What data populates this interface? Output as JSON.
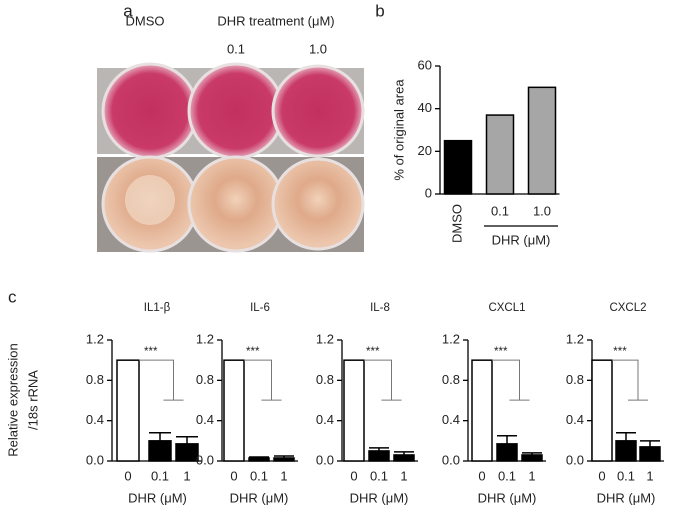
{
  "panel_labels": [
    "a",
    "b",
    "c"
  ],
  "photo": {
    "control_label": "DMSO",
    "treatment_label": "DHR treatment (μM)",
    "doses": [
      "0.1",
      "1.0"
    ]
  },
  "shared_ylabel": [
    "Relative expression",
    "/18s rRNA"
  ],
  "chart_data": [
    {
      "type": "bar",
      "ylabel": "% of original area",
      "categories": [
        "DMSO",
        "0.1",
        "1.0"
      ],
      "values": [
        25,
        37,
        50
      ],
      "colors": [
        "#000000",
        "#a6a6a6",
        "#a6a6a6"
      ],
      "ylim": [
        0,
        60
      ],
      "yticks": [
        0,
        20,
        40,
        60
      ],
      "group_label": "DHR (μM)"
    },
    {
      "type": "bar",
      "title": "IL1-β",
      "categories": [
        "0",
        "0.1",
        "1"
      ],
      "values": [
        1.0,
        0.2,
        0.17
      ],
      "errors": [
        null,
        0.08,
        0.07
      ],
      "colors": [
        "#ffffff",
        "#000000",
        "#000000"
      ],
      "ylim": [
        0,
        1.2
      ],
      "yticks": [
        {
          "value": 0,
          "label": "0.0"
        },
        0.4,
        0.8,
        1.2
      ],
      "xlabel": "DHR (μM)",
      "annotation": "***"
    },
    {
      "type": "bar",
      "title": "IL-6",
      "categories": [
        "0",
        "0.1",
        "1"
      ],
      "values": [
        1.0,
        0.03,
        0.03
      ],
      "errors": [
        null,
        0.01,
        0.02
      ],
      "colors": [
        "#ffffff",
        "#000000",
        "#000000"
      ],
      "ylim": [
        0,
        1.2
      ],
      "yticks": [
        {
          "value": 0,
          "label": "0.0"
        },
        0.4,
        0.8,
        1.2
      ],
      "xlabel": "DHR (μM)",
      "annotation": "***"
    },
    {
      "type": "bar",
      "title": "IL-8",
      "categories": [
        "0",
        "0.1",
        "1"
      ],
      "values": [
        1.0,
        0.1,
        0.06
      ],
      "errors": [
        null,
        0.03,
        0.03
      ],
      "colors": [
        "#ffffff",
        "#000000",
        "#000000"
      ],
      "ylim": [
        0,
        1.2
      ],
      "yticks": [
        {
          "value": 0,
          "label": "0.0"
        },
        0.4,
        0.8,
        1.2
      ],
      "xlabel": "DHR (μM)",
      "annotation": "***"
    },
    {
      "type": "bar",
      "title": "CXCL1",
      "categories": [
        "0",
        "0.1",
        "1"
      ],
      "values": [
        1.0,
        0.17,
        0.06
      ],
      "errors": [
        null,
        0.08,
        0.02
      ],
      "colors": [
        "#ffffff",
        "#000000",
        "#000000"
      ],
      "ylim": [
        0,
        1.2
      ],
      "yticks": [
        {
          "value": 0,
          "label": "0.0"
        },
        0.4,
        0.8,
        1.2
      ],
      "xlabel": "DHR (μM)",
      "annotation": "***"
    },
    {
      "type": "bar",
      "title": "CXCL2",
      "categories": [
        "0",
        "0.1",
        "1"
      ],
      "values": [
        1.0,
        0.2,
        0.14
      ],
      "errors": [
        null,
        0.08,
        0.06
      ],
      "colors": [
        "#ffffff",
        "#000000",
        "#000000"
      ],
      "ylim": [
        0,
        1.2
      ],
      "yticks": [
        {
          "value": 0,
          "label": "0.0"
        },
        0.4,
        0.8,
        1.2
      ],
      "xlabel": "DHR (μM)",
      "annotation": "***"
    }
  ]
}
